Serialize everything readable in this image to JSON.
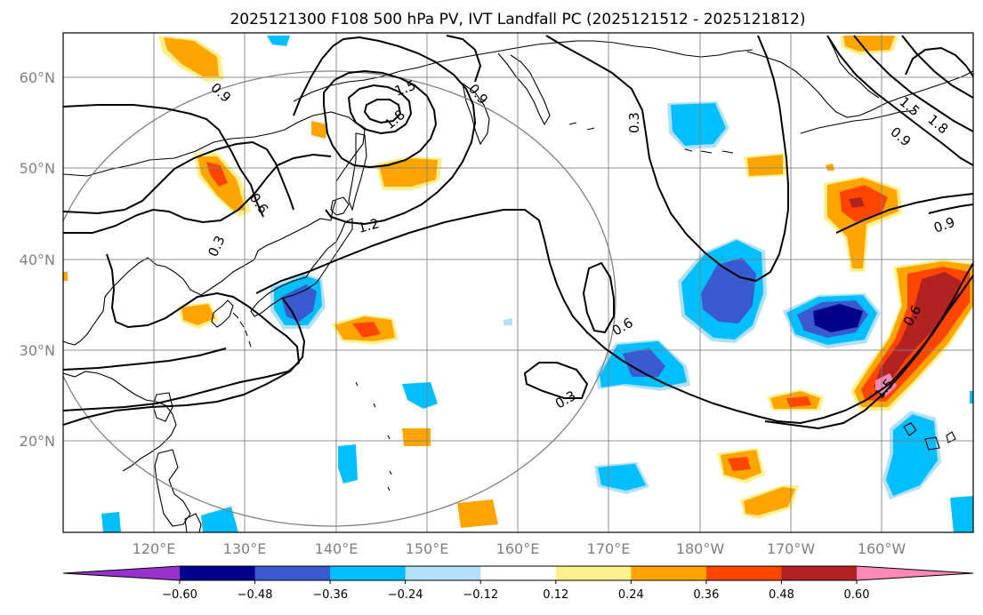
{
  "title": "2025121300 F108 500 hPa PV, IVT Landfall PC (2025121512 - 2025121812)",
  "lat_labels": [
    "60°N",
    "50°N",
    "40°N",
    "30°N",
    "20°N"
  ],
  "lon_labels": [
    "120°E",
    "130°E",
    "140°E",
    "150°E",
    "160°E",
    "170°E",
    "180°W",
    "170°W",
    "160°W"
  ],
  "contour_labels": [
    "0.9",
    "1.5",
    "1.8",
    "0.9",
    "0.6",
    "1.2",
    "0.3",
    "0.6",
    "0.3",
    "1.5",
    "1.8",
    "0.9",
    "0.9",
    "0.6",
    "0.3",
    "1.5"
  ],
  "colorbar": {
    "tick_labels": [
      "−0.60",
      "−0.48",
      "−0.36",
      "−0.24",
      "−0.12",
      "0.12",
      "0.24",
      "0.36",
      "0.48",
      "0.60"
    ],
    "colors": [
      "#9932cc",
      "#00008b",
      "#3a5bd0",
      "#00bfff",
      "#b0e0fa",
      "#ffffff",
      "#fff08c",
      "#ffa500",
      "#ff4500",
      "#b22222",
      "#ff88b4"
    ]
  },
  "colors": {
    "grid": "#808080",
    "contour": "#000000",
    "coastline": "#000000",
    "circle": "#808080"
  }
}
